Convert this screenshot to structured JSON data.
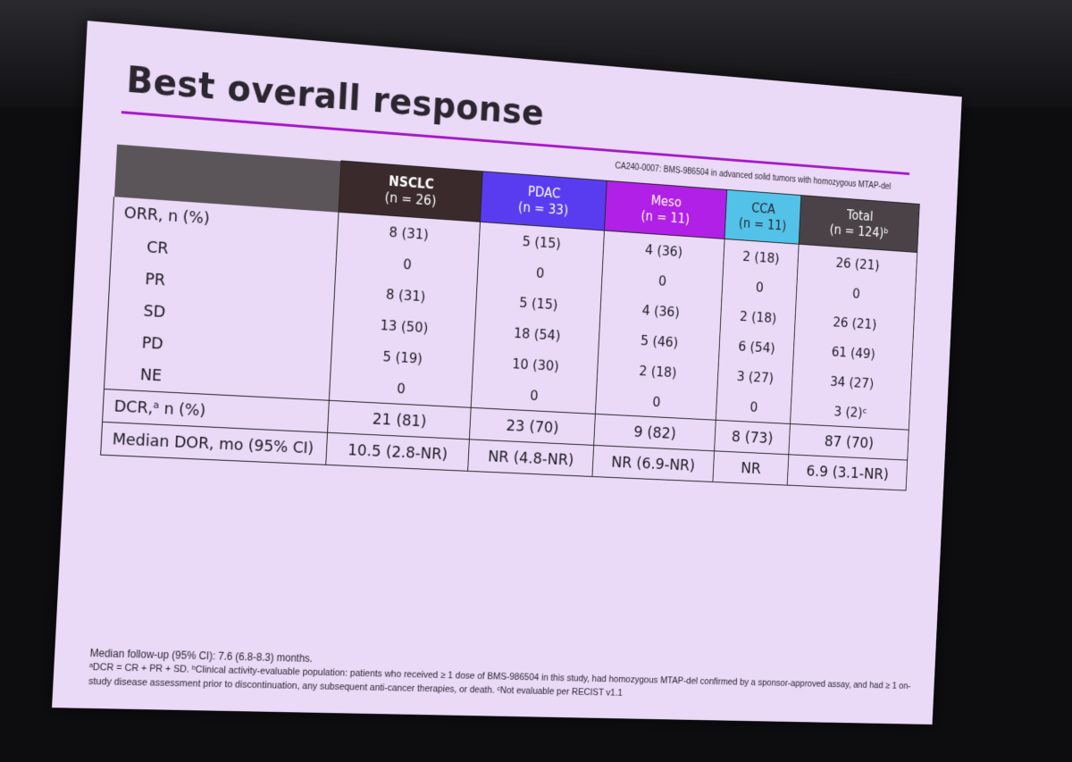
{
  "slide": {
    "title": "Best overall response",
    "study": "CA240-0007: BMS-986504 in advanced solid tumors with homozygous MTAP-del",
    "accent_color": "#a418c8"
  },
  "table": {
    "columns": [
      {
        "name": "NSCLC",
        "n": "(n = 26)",
        "color": "#3b2a2c"
      },
      {
        "name": "PDAC",
        "n": "(n = 33)",
        "color": "#5a3cf0"
      },
      {
        "name": "Meso",
        "n": "(n = 11)",
        "color": "#b020e6"
      },
      {
        "name": "CCA",
        "n": "(n = 11)",
        "color": "#52c2e8"
      },
      {
        "name": "Total",
        "n": "(n = 124)ᵇ",
        "color": "#4a4247"
      }
    ],
    "rows": [
      {
        "label": "ORR, n (%)",
        "values": [
          "8 (31)",
          "5 (15)",
          "4 (36)",
          "2 (18)",
          "26 (21)"
        ]
      },
      {
        "label": "CR",
        "values": [
          "0",
          "0",
          "0",
          "0",
          "0"
        ]
      },
      {
        "label": "PR",
        "values": [
          "8 (31)",
          "5 (15)",
          "4 (36)",
          "2 (18)",
          "26 (21)"
        ]
      },
      {
        "label": "SD",
        "values": [
          "13 (50)",
          "18 (54)",
          "5 (46)",
          "6 (54)",
          "61 (49)"
        ]
      },
      {
        "label": "PD",
        "values": [
          "5 (19)",
          "10 (30)",
          "2 (18)",
          "3 (27)",
          "34 (27)"
        ]
      },
      {
        "label": "NE",
        "values": [
          "0",
          "0",
          "0",
          "0",
          "3 (2)ᶜ"
        ]
      },
      {
        "label": "DCR,ᵃ n (%)",
        "values": [
          "21 (81)",
          "23 (70)",
          "9 (82)",
          "8 (73)",
          "87 (70)"
        ]
      },
      {
        "label": "Median DOR, mo (95% CI)",
        "values": [
          "10.5 (2.8-NR)",
          "NR (4.8-NR)",
          "NR (6.9-NR)",
          "NR",
          "6.9 (3.1-NR)"
        ]
      }
    ]
  },
  "footnotes": {
    "followup": "Median follow-up (95% CI): 7.6 (6.8-8.3) months.",
    "notes": "ᵃDCR = CR + PR + SD. ᵇClinical activity-evaluable population: patients who received ≥ 1 dose of BMS-986504 in this study, had homozygous MTAP-del confirmed by a sponsor-approved assay, and had ≥ 1 on-study disease assessment prior to discontinuation, any subsequent anti-cancer therapies, or death. ᶜNot evaluable per RECIST v1.1"
  }
}
